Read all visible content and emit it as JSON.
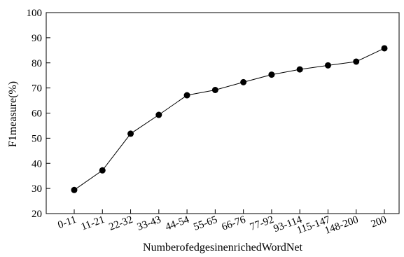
{
  "chart_data": {
    "type": "line",
    "title": "",
    "xlabel": "NumberofedgesinenrichedWordNet",
    "ylabel": "F1measure(%)",
    "ylim": [
      20,
      100
    ],
    "yticks": [
      20,
      30,
      40,
      50,
      60,
      70,
      80,
      90,
      100
    ],
    "grid": false,
    "categories": [
      "0-11",
      "11-21",
      "22-32",
      "33-43",
      "44-54",
      "55-65",
      "66-76",
      "77-92",
      "93-114",
      "115-147",
      "148-200",
      "200"
    ],
    "series": [
      {
        "values": [
          29.4,
          37.2,
          51.8,
          59.3,
          67.1,
          69.2,
          72.3,
          75.3,
          77.4,
          79.0,
          80.5,
          85.8
        ],
        "color": "#000000",
        "marker": "filled-circle"
      }
    ]
  }
}
